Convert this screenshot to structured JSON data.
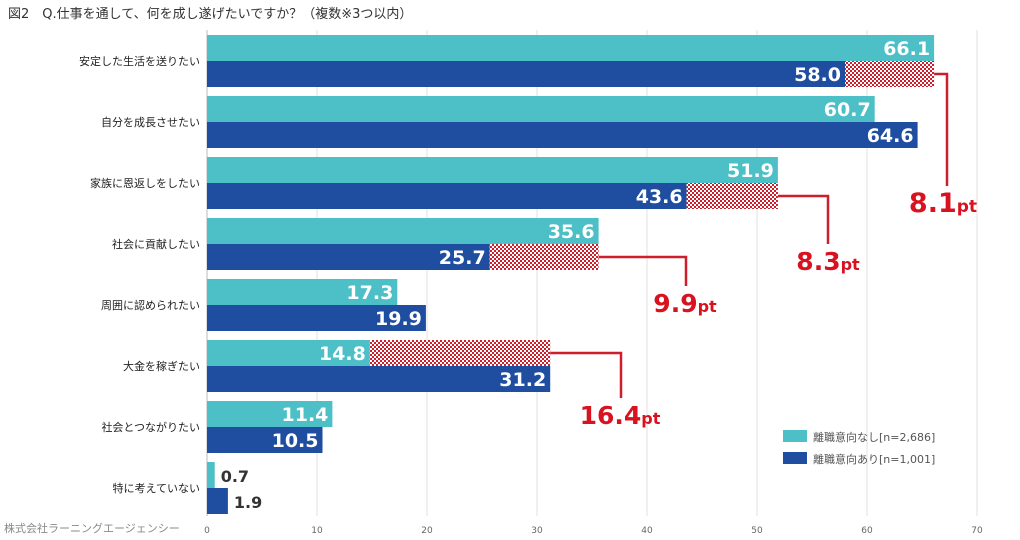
{
  "title": "図2　Q.仕事を通して、何を成し遂げたいですか？（複数※3つ以内）",
  "credit": "株式会社ラーニングエージェンシー",
  "colors": {
    "no_intent": "#4dbfc7",
    "intent": "#1f4da0",
    "diff": "#cc1f2b",
    "grid": "#e2e2e2"
  },
  "chart_data": {
    "type": "bar",
    "orientation": "horizontal",
    "categories": [
      "安定した生活を送りたい",
      "自分を成長させたい",
      "家族に恩返しをしたい",
      "社会に貢献したい",
      "周囲に認められたい",
      "大金を稼ぎたい",
      "社会とつながりたい",
      "特に考えていない"
    ],
    "series": [
      {
        "name": "離職意向なし[n=2,686]",
        "values": [
          66.1,
          60.7,
          51.9,
          35.6,
          17.3,
          14.8,
          11.4,
          0.7
        ]
      },
      {
        "name": "離職意向あり[n=1,001]",
        "values": [
          58.0,
          64.6,
          43.6,
          25.7,
          19.9,
          31.2,
          10.5,
          1.9
        ]
      }
    ],
    "value_labels": [
      [
        "66.1",
        "60.7",
        "51.9",
        "35.6",
        "17.3",
        "14.8",
        "11.4",
        "0.7"
      ],
      [
        "58.0",
        "64.6",
        "43.6",
        "25.7",
        "19.9",
        "31.2",
        "10.5",
        "1.9"
      ]
    ],
    "annotations": [
      {
        "category_index": 0,
        "num": "8.1",
        "unit": "pt"
      },
      {
        "category_index": 2,
        "num": "8.3",
        "unit": "pt"
      },
      {
        "category_index": 3,
        "num": "9.9",
        "unit": "pt"
      },
      {
        "category_index": 5,
        "num": "16.4",
        "unit": "pt"
      }
    ],
    "xlim": [
      0,
      70
    ],
    "xticks": [
      "0",
      "10",
      "20",
      "30",
      "40",
      "50",
      "60",
      "70"
    ],
    "legend_position": "bottom-right",
    "grid": true
  }
}
